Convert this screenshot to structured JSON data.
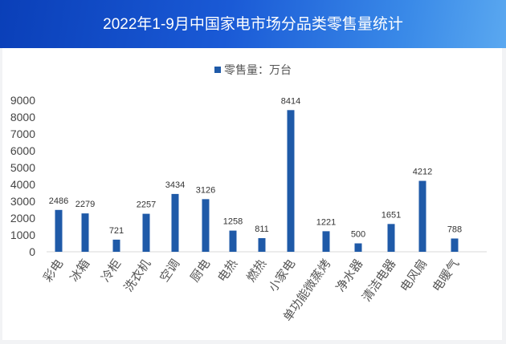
{
  "header": {
    "title": "2022年1-9月中国家电市场分品类零售量统计"
  },
  "chart_data": {
    "type": "bar",
    "title": "",
    "legend": {
      "entries": [
        "零售量：万台"
      ],
      "position": "top"
    },
    "categories": [
      "彩电",
      "冰箱",
      "冷柜",
      "洗衣机",
      "空调",
      "厨电",
      "电热",
      "燃热",
      "小家电",
      "单功能微蒸烤",
      "净水器",
      "清洁电器",
      "电风扇",
      "电暖气"
    ],
    "series": [
      {
        "name": "零售量：万台",
        "values": [
          2486,
          2279,
          721,
          2257,
          3434,
          3126,
          1258,
          811,
          8414,
          1221,
          500,
          1651,
          4212,
          788
        ]
      }
    ],
    "ylim": [
      0,
      9000
    ],
    "yticks": [
      0,
      1000,
      2000,
      3000,
      4000,
      5000,
      6000,
      7000,
      8000,
      9000
    ],
    "data_labels": true,
    "grid": false,
    "colors": {
      "bar": "#1f5aa8"
    }
  }
}
